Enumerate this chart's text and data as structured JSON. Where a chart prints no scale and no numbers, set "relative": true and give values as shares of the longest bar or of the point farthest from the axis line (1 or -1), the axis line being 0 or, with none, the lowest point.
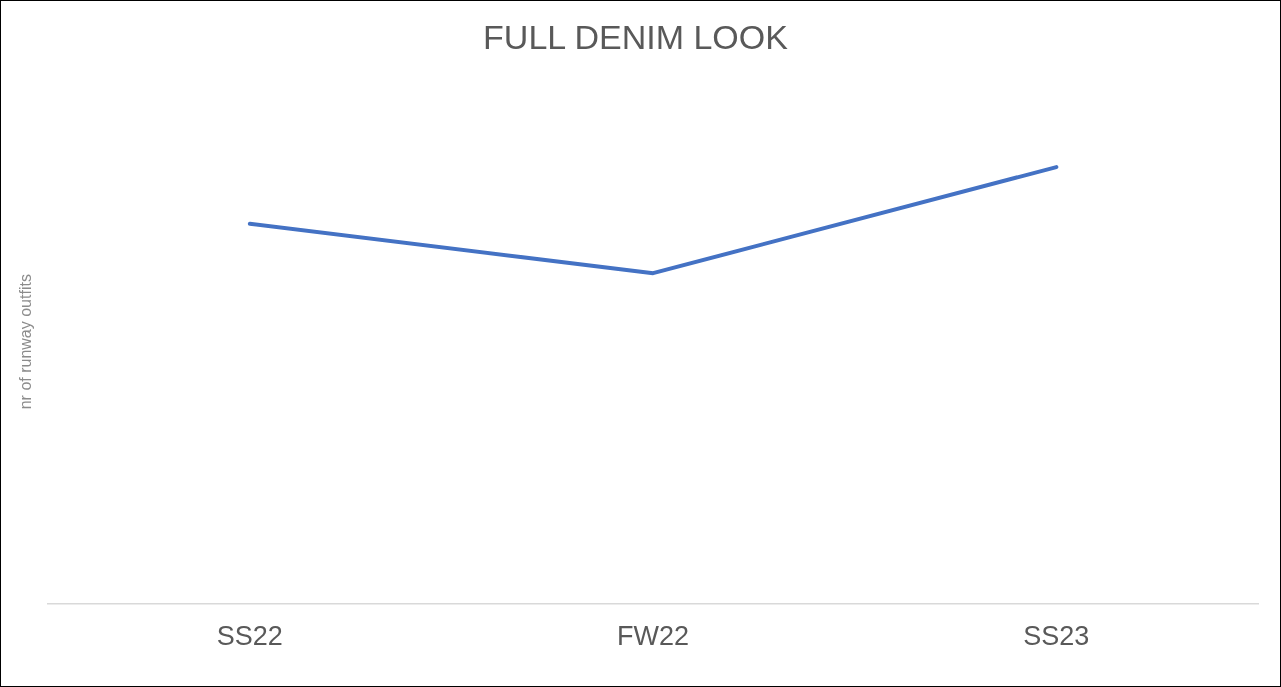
{
  "chart_data": {
    "type": "line",
    "title": "FULL DENIM LOOK",
    "ylabel": "nr of runway outfits",
    "categories": [
      "SS22",
      "FW22",
      "SS23"
    ],
    "series": [
      {
        "color": "#4472c4",
        "values": [
          0.87,
          0.757,
          1
        ]
      }
    ],
    "relative": true,
    "tick_labels": "x",
    "grid": false,
    "legend": false,
    "marker": "none"
  }
}
